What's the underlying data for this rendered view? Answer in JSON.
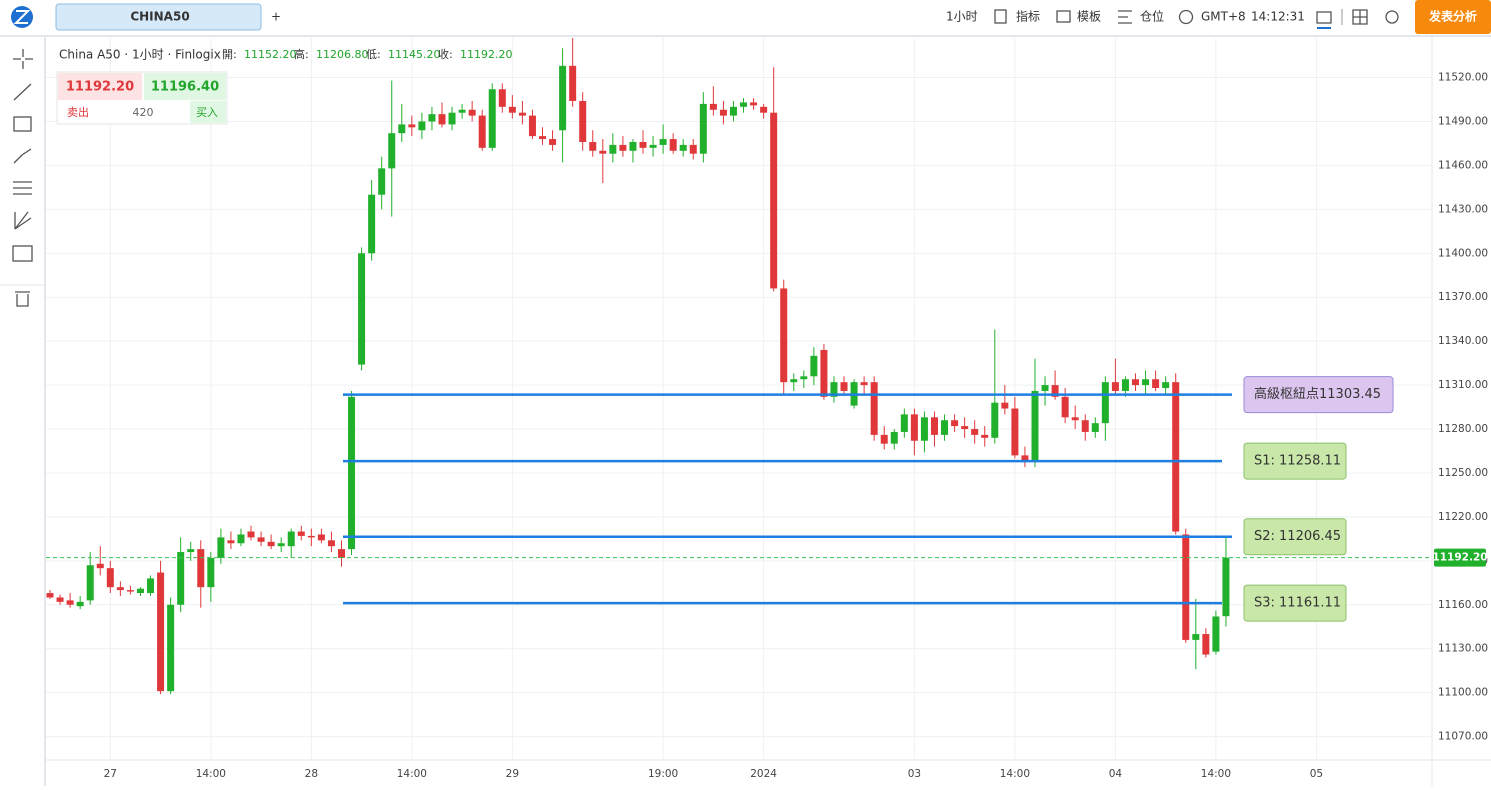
{
  "toolbar": {
    "symbol_tab": "CHINA50",
    "add_tab": "+",
    "interval": "1小时",
    "indicators": "指标",
    "templates": "模板",
    "positions": "仓位",
    "timezone": "GMT+8",
    "time": "14:12:31",
    "publish": "发表分析"
  },
  "legend": {
    "title": "China A50 · 1小时 · Finlogix",
    "open_label": "開:",
    "open": "11152.20",
    "high_label": "高:",
    "high": "11206.80",
    "low_label": "低:",
    "low": "11145.20",
    "close_label": "收:",
    "close": "11192.20"
  },
  "trade_panel": {
    "sell_price": "11192.20",
    "buy_price": "11196.40",
    "sell": "卖出",
    "spread": "420",
    "buy": "买入"
  },
  "chart_data": {
    "type": "candlestick",
    "up_color": "#21b02b",
    "down_color": "#e0373a",
    "level_color": "#1e7fe0",
    "open": [
      11168,
      11165,
      11163,
      11159,
      11163,
      11188,
      11185,
      11172,
      11170,
      11168,
      11168,
      11182,
      11101,
      11160,
      11196,
      11198,
      11172,
      11192,
      11204,
      11202,
      11210,
      11206,
      11203,
      11200,
      11200,
      11210,
      11207,
      11208,
      11204,
      11198,
      11198,
      11324,
      11400,
      11440,
      11458,
      11482,
      11488,
      11484,
      11490,
      11495,
      11488,
      11496,
      11498,
      11494,
      11472,
      11512,
      11500,
      11496,
      11494,
      11480,
      11478,
      11484,
      11528,
      11504,
      11476,
      11470,
      11468,
      11474,
      11470,
      11476,
      11472,
      11474,
      11478,
      11470,
      11474,
      11468,
      11502,
      11498,
      11494,
      11500,
      11503,
      11500,
      11496,
      11376,
      11312,
      11314,
      11316,
      11334,
      11302,
      11312,
      11296,
      11312,
      11312,
      11276,
      11270,
      11278,
      11290,
      11272,
      11288,
      11276,
      11286,
      11282,
      11280,
      11276,
      11274,
      11298,
      11294,
      11262,
      11258,
      11306,
      11310,
      11302,
      11288,
      11286,
      11278,
      11284,
      11312,
      11306,
      11314,
      11310,
      11314,
      11308,
      11312,
      11208,
      11136,
      11140,
      11128,
      11152.2
    ],
    "high": [
      11170,
      11167,
      11168,
      11166,
      11196,
      11200,
      11190,
      11176,
      11173,
      11172,
      11180,
      11190,
      11165,
      11206,
      11203,
      11204,
      11196,
      11212,
      11210,
      11212,
      11214,
      11210,
      11208,
      11206,
      11212,
      11214,
      11212,
      11212,
      11210,
      11204,
      11306,
      11404,
      11450,
      11466,
      11518,
      11502,
      11494,
      11496,
      11500,
      11503,
      11500,
      11502,
      11504,
      11498,
      11516,
      11516,
      11508,
      11504,
      11498,
      11486,
      11484,
      11540,
      11547,
      11510,
      11484,
      11478,
      11482,
      11480,
      11478,
      11484,
      11480,
      11488,
      11482,
      11478,
      11478,
      11510,
      11514,
      11504,
      11504,
      11506,
      11506,
      11502,
      11527,
      11382,
      11318,
      11320,
      11336,
      11338,
      11316,
      11316,
      11314,
      11316,
      11316,
      11282,
      11280,
      11294,
      11294,
      11292,
      11292,
      11290,
      11290,
      11288,
      11286,
      11282,
      11348,
      11310,
      11302,
      11268,
      11328,
      11316,
      11320,
      11308,
      11296,
      11290,
      11288,
      11316,
      11328,
      11316,
      11318,
      11320,
      11320,
      11316,
      11318,
      11212,
      11164,
      11144,
      11156,
      11206.8
    ],
    "low": [
      11164,
      11160,
      11158,
      11157,
      11160,
      11180,
      11168,
      11166,
      11167,
      11166,
      11166,
      11099,
      11099,
      11155,
      11190,
      11158,
      11162,
      11188,
      11198,
      11200,
      11204,
      11200,
      11198,
      11196,
      11192,
      11204,
      11200,
      11202,
      11196,
      11186,
      11194,
      11320,
      11395,
      11430,
      11425,
      11476,
      11480,
      11478,
      11484,
      11486,
      11484,
      11492,
      11490,
      11470,
      11470,
      11496,
      11492,
      11488,
      11478,
      11474,
      11470,
      11462,
      11500,
      11470,
      11466,
      11448,
      11462,
      11466,
      11462,
      11468,
      11466,
      11468,
      11468,
      11466,
      11464,
      11462,
      11494,
      11488,
      11490,
      11496,
      11498,
      11492,
      11374,
      11304,
      11306,
      11308,
      11310,
      11300,
      11298,
      11304,
      11294,
      11304,
      11272,
      11266,
      11266,
      11274,
      11262,
      11264,
      11268,
      11272,
      11278,
      11274,
      11270,
      11268,
      11270,
      11290,
      11260,
      11254,
      11254,
      11296,
      11300,
      11284,
      11280,
      11272,
      11274,
      11272,
      11304,
      11302,
      11306,
      11304,
      11306,
      11304,
      11208,
      11134,
      11116,
      11124,
      11126,
      11145.2
    ],
    "close": [
      11165,
      11162,
      11160,
      11162,
      11187,
      11185,
      11172,
      11170,
      11169,
      11171,
      11178,
      11101,
      11160,
      11196,
      11198,
      11172,
      11192,
      11206,
      11202,
      11208,
      11206,
      11203,
      11200,
      11202,
      11210,
      11207,
      11206,
      11204,
      11200,
      11192,
      11302,
      11400,
      11440,
      11458,
      11482,
      11488,
      11486,
      11490,
      11495,
      11488,
      11496,
      11498,
      11494,
      11472,
      11512,
      11500,
      11496,
      11494,
      11480,
      11478,
      11474,
      11528,
      11504,
      11476,
      11470,
      11468,
      11474,
      11470,
      11476,
      11472,
      11474,
      11478,
      11470,
      11474,
      11468,
      11502,
      11498,
      11494,
      11500,
      11503,
      11501,
      11496,
      11376,
      11312,
      11314,
      11316,
      11330,
      11302,
      11312,
      11306,
      11312,
      11310,
      11276,
      11270,
      11278,
      11290,
      11272,
      11288,
      11276,
      11286,
      11282,
      11280,
      11276,
      11274,
      11298,
      11294,
      11262,
      11258,
      11306,
      11310,
      11302,
      11288,
      11286,
      11278,
      11284,
      11312,
      11306,
      11314,
      11310,
      11314,
      11308,
      11312,
      11210,
      11136,
      11140,
      11126,
      11152,
      11192.2
    ],
    "xlim": [
      -0.2,
      137.5
    ],
    "xticks": [
      {
        "value": 6,
        "label": "27"
      },
      {
        "value": 16,
        "label": "14:00"
      },
      {
        "value": 26,
        "label": "28"
      },
      {
        "value": 36,
        "label": "14:00"
      },
      {
        "value": 46,
        "label": "29"
      },
      {
        "value": 61,
        "label": "19:00"
      },
      {
        "value": 71,
        "label": "2024"
      },
      {
        "value": 86,
        "label": "03"
      },
      {
        "value": 96,
        "label": "14:00"
      },
      {
        "value": 106,
        "label": "04"
      },
      {
        "value": 116,
        "label": "14:00"
      },
      {
        "value": 126,
        "label": "05"
      }
    ],
    "ylim": [
      11054,
      11547
    ],
    "yticks": [
      {
        "value": 11070,
        "label": "11070.00"
      },
      {
        "value": 11100,
        "label": "11100.00"
      },
      {
        "value": 11130,
        "label": "11130.00"
      },
      {
        "value": 11160,
        "label": "11160.00"
      },
      {
        "value": 11190,
        "label": "11190.00"
      },
      {
        "value": 11220,
        "label": "11220.00"
      },
      {
        "value": 11250,
        "label": "11250.00"
      },
      {
        "value": 11280,
        "label": "11280.00"
      },
      {
        "value": 11310,
        "label": "11310.00"
      },
      {
        "value": 11340,
        "label": "11340.00"
      },
      {
        "value": 11370,
        "label": "11370.00"
      },
      {
        "value": 11400,
        "label": "11400.00"
      },
      {
        "value": 11430,
        "label": "11430.00"
      },
      {
        "value": 11460,
        "label": "11460.00"
      },
      {
        "value": 11490,
        "label": "11490.00"
      },
      {
        "value": 11520,
        "label": "11520.00"
      }
    ],
    "grid": true,
    "levels": [
      {
        "value": 11303.45,
        "label": "高級枢紐点11303.45"
      },
      {
        "value": 11258.11,
        "label": "S1: 11258.11"
      },
      {
        "value": 11206.45,
        "label": "S2: 11206.45"
      },
      {
        "value": 11161.11,
        "label": "S3: 11161.11"
      }
    ],
    "last_price": {
      "value": 11192.2,
      "label": "11192.20"
    }
  }
}
